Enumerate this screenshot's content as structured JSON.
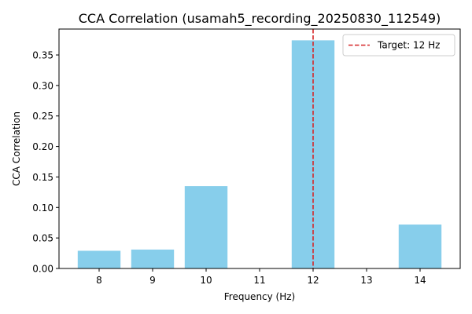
{
  "chart_data": {
    "type": "bar",
    "title": "CCA Correlation (usamah5_recording_20250830_112549)",
    "xlabel": "Frequency (Hz)",
    "ylabel": "CCA Correlation",
    "categories": [
      "8",
      "9",
      "10",
      "11",
      "12",
      "13",
      "14"
    ],
    "x": [
      8,
      9,
      10,
      11,
      12,
      13,
      14
    ],
    "values": [
      0.029,
      0.031,
      0.135,
      0.0,
      0.374,
      0.0,
      0.072
    ],
    "xlim": [
      7.25,
      14.75
    ],
    "ylim": [
      0,
      0.3925
    ],
    "yticks": [
      0.0,
      0.05,
      0.1,
      0.15,
      0.2,
      0.25,
      0.3,
      0.35
    ],
    "ytick_labels": [
      "0.00",
      "0.05",
      "0.10",
      "0.15",
      "0.20",
      "0.25",
      "0.30",
      "0.35"
    ],
    "bar_width": 0.8,
    "bar_color": "#87ceeb",
    "target": {
      "x": 12,
      "label": "Target: 12 Hz",
      "color": "#d62728",
      "style": "dashed"
    },
    "legend": {
      "placement": "top-right",
      "entries": [
        "Target: 12 Hz"
      ]
    },
    "grid": false
  }
}
